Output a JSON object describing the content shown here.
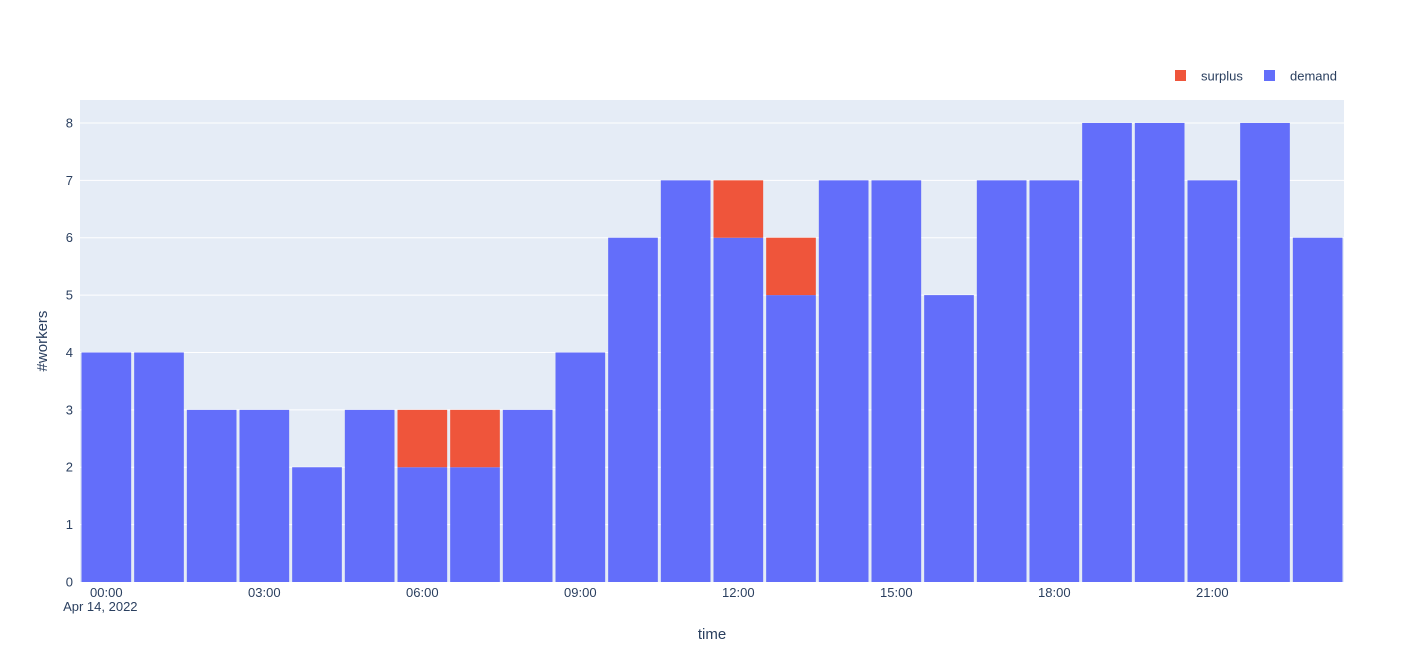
{
  "chart_data": {
    "type": "bar",
    "barmode": "stack",
    "x": [
      "00:00",
      "01:00",
      "02:00",
      "03:00",
      "04:00",
      "05:00",
      "06:00",
      "07:00",
      "08:00",
      "09:00",
      "10:00",
      "11:00",
      "12:00",
      "13:00",
      "14:00",
      "15:00",
      "16:00",
      "17:00",
      "18:00",
      "19:00",
      "20:00",
      "21:00",
      "22:00",
      "23:00"
    ],
    "series": [
      {
        "name": "demand",
        "color": "#636efa",
        "values": [
          4,
          4,
          3,
          3,
          2,
          3,
          2,
          2,
          3,
          4,
          6,
          7,
          6,
          5,
          7,
          7,
          5,
          7,
          7,
          8,
          8,
          7,
          8,
          6
        ]
      },
      {
        "name": "surplus",
        "color": "#ef553b",
        "values": [
          0,
          0,
          0,
          0,
          0,
          0,
          1,
          1,
          0,
          0,
          0,
          0,
          1,
          1,
          0,
          0,
          0,
          0,
          0,
          0,
          0,
          0,
          0,
          0
        ]
      }
    ],
    "xlabel": "time",
    "ylabel": "#workers",
    "ylim": [
      0,
      8.4
    ],
    "y_ticks": [
      "0",
      "1",
      "2",
      "3",
      "4",
      "5",
      "6",
      "7",
      "8"
    ],
    "x_ticks": [
      {
        "hour": 0,
        "label": "00:00",
        "sublabel": "Apr 14, 2022"
      },
      {
        "hour": 3,
        "label": "03:00"
      },
      {
        "hour": 6,
        "label": "06:00"
      },
      {
        "hour": 9,
        "label": "09:00"
      },
      {
        "hour": 12,
        "label": "12:00"
      },
      {
        "hour": 15,
        "label": "15:00"
      },
      {
        "hour": 18,
        "label": "18:00"
      },
      {
        "hour": 21,
        "label": "21:00"
      }
    ],
    "legend": {
      "position": "top-right",
      "orientation": "horizontal",
      "items": [
        "surplus",
        "demand"
      ]
    },
    "grid": true,
    "plot_bgcolor": "#e5ecf6"
  }
}
